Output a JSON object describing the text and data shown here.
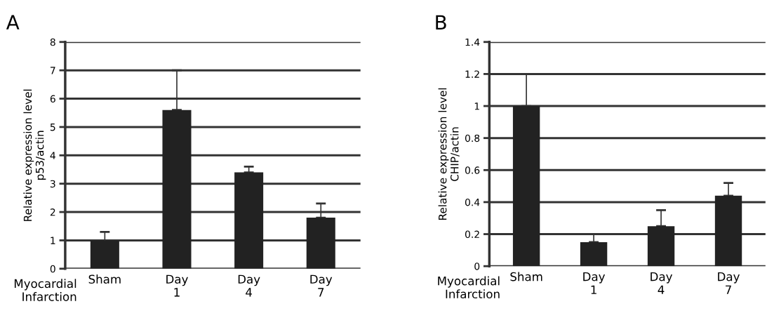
{
  "chart_data": [
    {
      "type": "bar",
      "title": "A",
      "xlabel": "Myocardial\nInfarction",
      "ylabel": "Relative expression level\np53/actin",
      "categories": [
        "Sham",
        "Day\n1",
        "Day\n4",
        "Day\n7"
      ],
      "values": [
        1.0,
        5.6,
        3.4,
        1.8
      ],
      "errors": [
        [
          1.0,
          1.3
        ],
        [
          5.6,
          7.0
        ],
        [
          3.4,
          3.6
        ],
        [
          1.8,
          2.3
        ]
      ],
      "color": "#222222",
      "ylim": [
        0,
        8
      ],
      "yticks": [
        0,
        1,
        2,
        3,
        4,
        5,
        6,
        7,
        8
      ],
      "grid": "y"
    },
    {
      "type": "bar",
      "title": "B",
      "xlabel": "Myocardial\nInfarction",
      "ylabel": "Relative expression level\nCHIP/actin",
      "categories": [
        "Sham",
        "Day\n1",
        "Day\n4",
        "Day\n7"
      ],
      "values": [
        1.0,
        0.15,
        0.25,
        0.44
      ],
      "errors": [
        [
          1.0,
          1.2
        ],
        [
          0.15,
          0.2
        ],
        [
          0.25,
          0.35
        ],
        [
          0.44,
          0.52
        ]
      ],
      "color": "#222222",
      "ylim": [
        0,
        1.4
      ],
      "yticks": [
        0,
        0.2,
        0.4,
        0.6,
        0.8,
        1,
        1.2,
        1.4
      ],
      "grid": "y"
    }
  ]
}
